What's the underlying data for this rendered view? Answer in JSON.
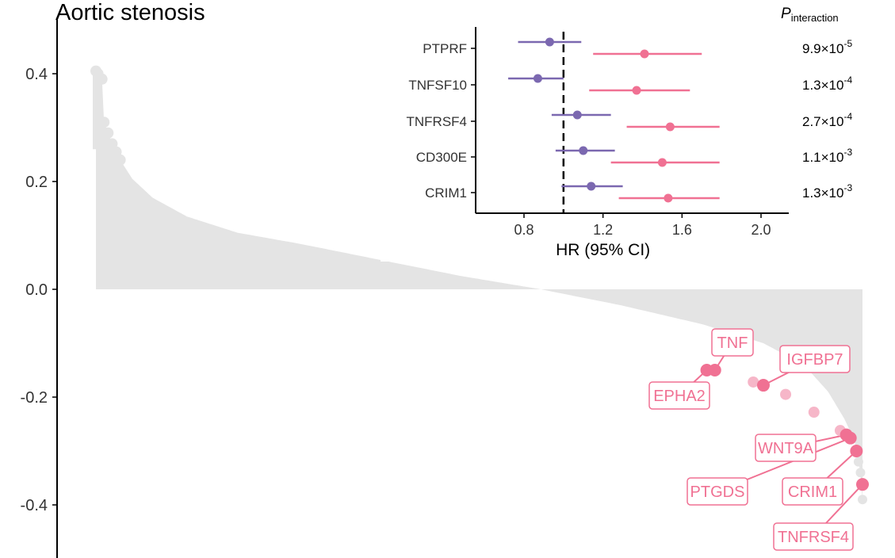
{
  "chart_data": [
    {
      "type": "bar",
      "title": "Aortic stenosis",
      "xlabel": "",
      "ylabel": "",
      "ylim": [
        -0.48,
        0.5
      ],
      "yticks": [
        0.4,
        0.2,
        0.0,
        -0.2,
        -0.4
      ],
      "ytick_labels": [
        "0.4",
        "0.2",
        "0.0",
        "-0.2",
        "-0.4"
      ],
      "grid": false,
      "n_points": 380,
      "profile": [
        [
          0,
          0.405
        ],
        [
          3,
          0.39
        ],
        [
          4,
          0.31
        ],
        [
          6,
          0.29
        ],
        [
          8,
          0.27
        ],
        [
          12,
          0.24
        ],
        [
          18,
          0.205
        ],
        [
          28,
          0.17
        ],
        [
          45,
          0.135
        ],
        [
          70,
          0.105
        ],
        [
          100,
          0.085
        ],
        [
          140,
          0.055
        ],
        [
          180,
          0.025
        ],
        [
          220,
          0.0
        ],
        [
          260,
          -0.03
        ],
        [
          300,
          -0.065
        ],
        [
          330,
          -0.1
        ],
        [
          350,
          -0.14
        ],
        [
          362,
          -0.19
        ],
        [
          370,
          -0.24
        ],
        [
          375,
          -0.28
        ],
        [
          378,
          -0.34
        ],
        [
          380,
          -0.44
        ]
      ],
      "highlighted_points": [
        {
          "label": "TNF",
          "rank": 306,
          "value": -0.15,
          "emphasis": "strong"
        },
        {
          "label": "EPHA2",
          "rank": 302,
          "value": -0.15,
          "emphasis": "strong"
        },
        {
          "label": "",
          "rank": 325,
          "value": -0.172,
          "emphasis": "light"
        },
        {
          "label": "IGFBP7",
          "rank": 330,
          "value": -0.178,
          "emphasis": "strong"
        },
        {
          "label": "",
          "rank": 341,
          "value": -0.195,
          "emphasis": "light"
        },
        {
          "label": "",
          "rank": 355,
          "value": -0.228,
          "emphasis": "light"
        },
        {
          "label": "",
          "rank": 368,
          "value": -0.262,
          "emphasis": "light"
        },
        {
          "label": "WNT9A",
          "rank": 371,
          "value": -0.27,
          "emphasis": "strong"
        },
        {
          "label": "PTGDS",
          "rank": 373,
          "value": -0.276,
          "emphasis": "strong"
        },
        {
          "label": "CRIM1",
          "rank": 376,
          "value": -0.3,
          "emphasis": "strong"
        },
        {
          "label": "TNFRSF4",
          "rank": 379,
          "value": -0.362,
          "emphasis": "strong"
        }
      ],
      "colors": {
        "area": "#e4e4e4",
        "highlight": "#f07193",
        "highlight_light": "#f6b6c8"
      }
    },
    {
      "type": "forest",
      "xlabel": "HR (95% CI)",
      "xlim": [
        0.6,
        2.1
      ],
      "xticks": [
        0.8,
        1.2,
        1.6,
        2.0
      ],
      "xtick_labels": [
        "0.8",
        "1.2",
        "1.6",
        "2.0"
      ],
      "reference_line": 1.0,
      "p_header": {
        "base": "P",
        "sub": "interaction"
      },
      "rows": [
        {
          "label": "PTPRF",
          "p_mantissa": "9.9×10",
          "p_exp": "-5",
          "purple": {
            "est": 0.93,
            "lo": 0.77,
            "hi": 1.09
          },
          "pink": {
            "est": 1.41,
            "lo": 1.15,
            "hi": 1.7
          }
        },
        {
          "label": "TNFSF10",
          "p_mantissa": "1.3×10",
          "p_exp": "-4",
          "purple": {
            "est": 0.87,
            "lo": 0.72,
            "hi": 1.0
          },
          "pink": {
            "est": 1.37,
            "lo": 1.13,
            "hi": 1.64
          }
        },
        {
          "label": "TNFRSF4",
          "p_mantissa": "2.7×10",
          "p_exp": "-4",
          "purple": {
            "est": 1.07,
            "lo": 0.94,
            "hi": 1.24
          },
          "pink": {
            "est": 1.54,
            "lo": 1.32,
            "hi": 1.79
          }
        },
        {
          "label": "CD300E",
          "p_mantissa": "1.1×10",
          "p_exp": "-3",
          "purple": {
            "est": 1.1,
            "lo": 0.96,
            "hi": 1.26
          },
          "pink": {
            "est": 1.5,
            "lo": 1.24,
            "hi": 1.79
          }
        },
        {
          "label": "CRIM1",
          "p_mantissa": "1.3×10",
          "p_exp": "-3",
          "purple": {
            "est": 1.14,
            "lo": 0.99,
            "hi": 1.3
          },
          "pink": {
            "est": 1.53,
            "lo": 1.28,
            "hi": 1.79
          }
        }
      ],
      "colors": {
        "purple": "#7b68b0",
        "pink": "#f07193",
        "axis": "#000000"
      }
    }
  ]
}
